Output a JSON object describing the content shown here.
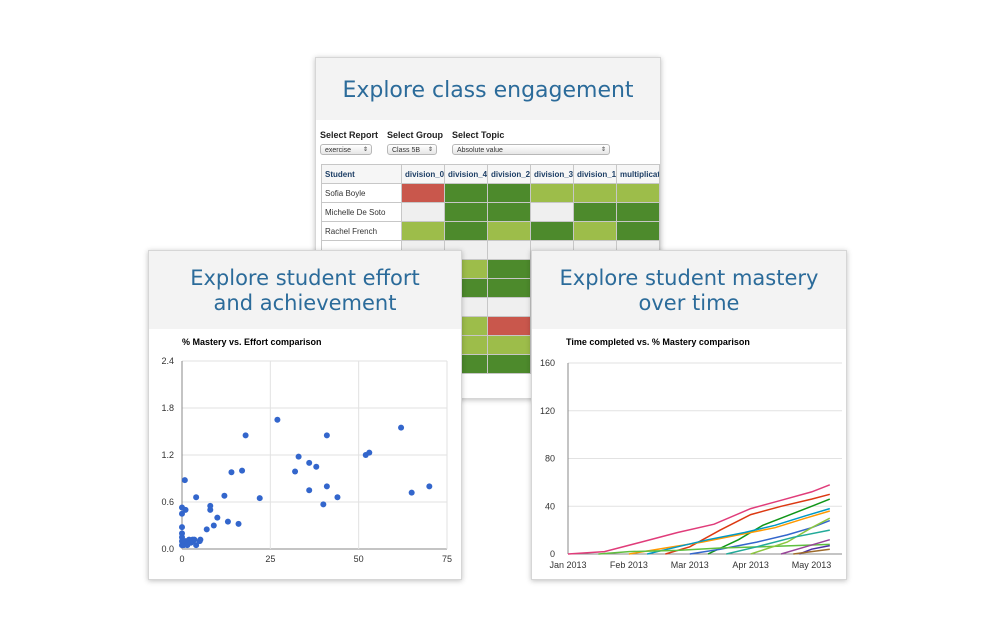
{
  "engagement": {
    "title": "Explore class engagement",
    "controls": {
      "report_label": "Select Report",
      "report_value": "exercise",
      "group_label": "Select Group",
      "group_value": "Class 5B",
      "topic_label": "Select Topic",
      "topic_value": "Absolute value"
    },
    "table": {
      "headers": [
        "Student",
        "division_0.5",
        "division_4",
        "division_2",
        "division_3",
        "division_1",
        "multiplicati"
      ],
      "rows": [
        {
          "name": "Sofia Boyle",
          "cells": [
            "red",
            "dark",
            "dark",
            "light",
            "light",
            "light"
          ]
        },
        {
          "name": "Michelle De Soto",
          "cells": [
            "gray",
            "dark",
            "dark",
            "gray",
            "dark",
            "dark"
          ]
        },
        {
          "name": "Rachel French",
          "cells": [
            "light",
            "dark",
            "light",
            "dark",
            "light",
            "dark"
          ]
        },
        {
          "name": "",
          "cells": [
            "gray",
            "gray",
            "gray",
            "gray",
            "gray",
            "gray"
          ]
        },
        {
          "name": "",
          "cells": [
            "gray",
            "light",
            "dark",
            "dark",
            "light",
            "dark"
          ]
        },
        {
          "name": "",
          "cells": [
            "gray",
            "dark",
            "dark",
            "dark",
            "light",
            "dark"
          ]
        },
        {
          "name": "",
          "cells": [
            "gray",
            "gray",
            "gray",
            "gray",
            "gray",
            "gray"
          ]
        },
        {
          "name": "",
          "cells": [
            "gray",
            "light",
            "red",
            "dark",
            "light",
            "dark"
          ]
        },
        {
          "name": "",
          "cells": [
            "gray",
            "light",
            "light",
            "dark",
            "light",
            "dark"
          ]
        },
        {
          "name": "",
          "cells": [
            "gray",
            "dark",
            "dark",
            "light",
            "dark",
            "dark"
          ]
        }
      ],
      "colors": {
        "red": "#c9574c",
        "dark": "#4d8a2c",
        "light": "#9dbd4a",
        "gray": "#efefef"
      }
    }
  },
  "effort": {
    "title_line1": "Explore student effort",
    "title_line2": "and achievement",
    "chart_data": {
      "type": "scatter",
      "title": "% Mastery vs. Effort comparison",
      "xlabel": "",
      "ylabel": "",
      "xlim": [
        0,
        75
      ],
      "ylim": [
        0,
        2.4
      ],
      "x_ticks": [
        "0",
        "25",
        "50",
        "75"
      ],
      "y_ticks": [
        "0.0",
        "0.6",
        "1.2",
        "1.8",
        "2.4"
      ],
      "color": "#3366cc",
      "points": [
        [
          0,
          0.05
        ],
        [
          0,
          0.1
        ],
        [
          0,
          0.15
        ],
        [
          0,
          0.2
        ],
        [
          0,
          0.28
        ],
        [
          0,
          0.45
        ],
        [
          0,
          0.53
        ],
        [
          0.5,
          0.05
        ],
        [
          1,
          0.1
        ],
        [
          1.5,
          0.05
        ],
        [
          2,
          0.12
        ],
        [
          2.5,
          0.08
        ],
        [
          3,
          0.1
        ],
        [
          3.5,
          0.12
        ],
        [
          4,
          0.05
        ],
        [
          1,
          0.5
        ],
        [
          0.8,
          0.88
        ],
        [
          3,
          0.12
        ],
        [
          5,
          0.1
        ],
        [
          5.2,
          0.12
        ],
        [
          4,
          0.66
        ],
        [
          7,
          0.25
        ],
        [
          8,
          0.5
        ],
        [
          8,
          0.55
        ],
        [
          9,
          0.3
        ],
        [
          10,
          0.4
        ],
        [
          12,
          0.68
        ],
        [
          13,
          0.35
        ],
        [
          14,
          0.98
        ],
        [
          16,
          0.32
        ],
        [
          17,
          1.0
        ],
        [
          18,
          1.45
        ],
        [
          22,
          0.65
        ],
        [
          27,
          1.65
        ],
        [
          32,
          0.99
        ],
        [
          33,
          1.18
        ],
        [
          36,
          1.1
        ],
        [
          36,
          0.75
        ],
        [
          38,
          1.05
        ],
        [
          40,
          0.57
        ],
        [
          41,
          0.8
        ],
        [
          41,
          1.45
        ],
        [
          44,
          0.66
        ],
        [
          52,
          1.2
        ],
        [
          53,
          1.23
        ],
        [
          62,
          1.55
        ],
        [
          65,
          0.72
        ],
        [
          70,
          0.8
        ]
      ]
    }
  },
  "mastery": {
    "title_line1": "Explore student mastery",
    "title_line2": "over time",
    "chart_data": {
      "type": "line",
      "title": "Time completed vs. % Mastery comparison",
      "xlabel": "",
      "ylabel": "",
      "x_ticks": [
        "Jan 2013",
        "Feb 2013",
        "Mar 2013",
        "Apr 2013",
        "May 2013"
      ],
      "y_ticks": [
        "0",
        "40",
        "80",
        "120",
        "160"
      ],
      "ylim": [
        0,
        160
      ],
      "series": [
        {
          "color": "#e03c7a",
          "points": [
            [
              0,
              0
            ],
            [
              0.6,
              2
            ],
            [
              1.2,
              10
            ],
            [
              1.8,
              18
            ],
            [
              2.4,
              25
            ],
            [
              3.0,
              38
            ],
            [
              3.5,
              45
            ],
            [
              4.0,
              52
            ],
            [
              4.3,
              58
            ]
          ]
        },
        {
          "color": "#dc3912",
          "points": [
            [
              1.6,
              0
            ],
            [
              2.0,
              6
            ],
            [
              2.5,
              20
            ],
            [
              3.0,
              33
            ],
            [
              3.5,
              40
            ],
            [
              4.0,
              46
            ],
            [
              4.3,
              50
            ]
          ]
        },
        {
          "color": "#109618",
          "points": [
            [
              2.3,
              0
            ],
            [
              2.8,
              12
            ],
            [
              3.2,
              24
            ],
            [
              3.6,
              32
            ],
            [
              4.0,
              40
            ],
            [
              4.3,
              46
            ]
          ]
        },
        {
          "color": "#ff9900",
          "points": [
            [
              1.0,
              0
            ],
            [
              1.6,
              5
            ],
            [
              2.2,
              10
            ],
            [
              2.8,
              16
            ],
            [
              3.4,
              22
            ],
            [
              3.9,
              30
            ],
            [
              4.3,
              36
            ]
          ]
        },
        {
          "color": "#0099c6",
          "points": [
            [
              1.3,
              0
            ],
            [
              1.8,
              6
            ],
            [
              2.3,
              12
            ],
            [
              2.9,
              18
            ],
            [
              3.4,
              24
            ],
            [
              3.9,
              32
            ],
            [
              4.3,
              38
            ]
          ]
        },
        {
          "color": "#3366cc",
          "points": [
            [
              2.0,
              0
            ],
            [
              2.5,
              4
            ],
            [
              3.1,
              10
            ],
            [
              3.6,
              16
            ],
            [
              4.0,
              22
            ],
            [
              4.3,
              28
            ]
          ]
        },
        {
          "color": "#5fbf3f",
          "points": [
            [
              0.5,
              0
            ],
            [
              1.0,
              2
            ],
            [
              1.8,
              3
            ],
            [
              2.5,
              5
            ],
            [
              3.2,
              6
            ],
            [
              4.3,
              8
            ]
          ]
        },
        {
          "color": "#4c2fa3",
          "points": [
            [
              3.8,
              0
            ],
            [
              4.0,
              4
            ],
            [
              4.3,
              7
            ]
          ]
        },
        {
          "color": "#8cc63f",
          "points": [
            [
              3.0,
              0
            ],
            [
              3.6,
              10
            ],
            [
              4.0,
              22
            ],
            [
              4.3,
              30
            ]
          ]
        },
        {
          "color": "#22aa99",
          "points": [
            [
              2.6,
              0
            ],
            [
              3.1,
              6
            ],
            [
              3.7,
              14
            ],
            [
              4.3,
              20
            ]
          ]
        },
        {
          "color": "#994499",
          "points": [
            [
              3.5,
              0
            ],
            [
              3.9,
              6
            ],
            [
              4.3,
              12
            ]
          ]
        },
        {
          "color": "#9e6b2b",
          "points": [
            [
              3.7,
              0
            ],
            [
              4.3,
              4
            ]
          ]
        }
      ]
    }
  }
}
